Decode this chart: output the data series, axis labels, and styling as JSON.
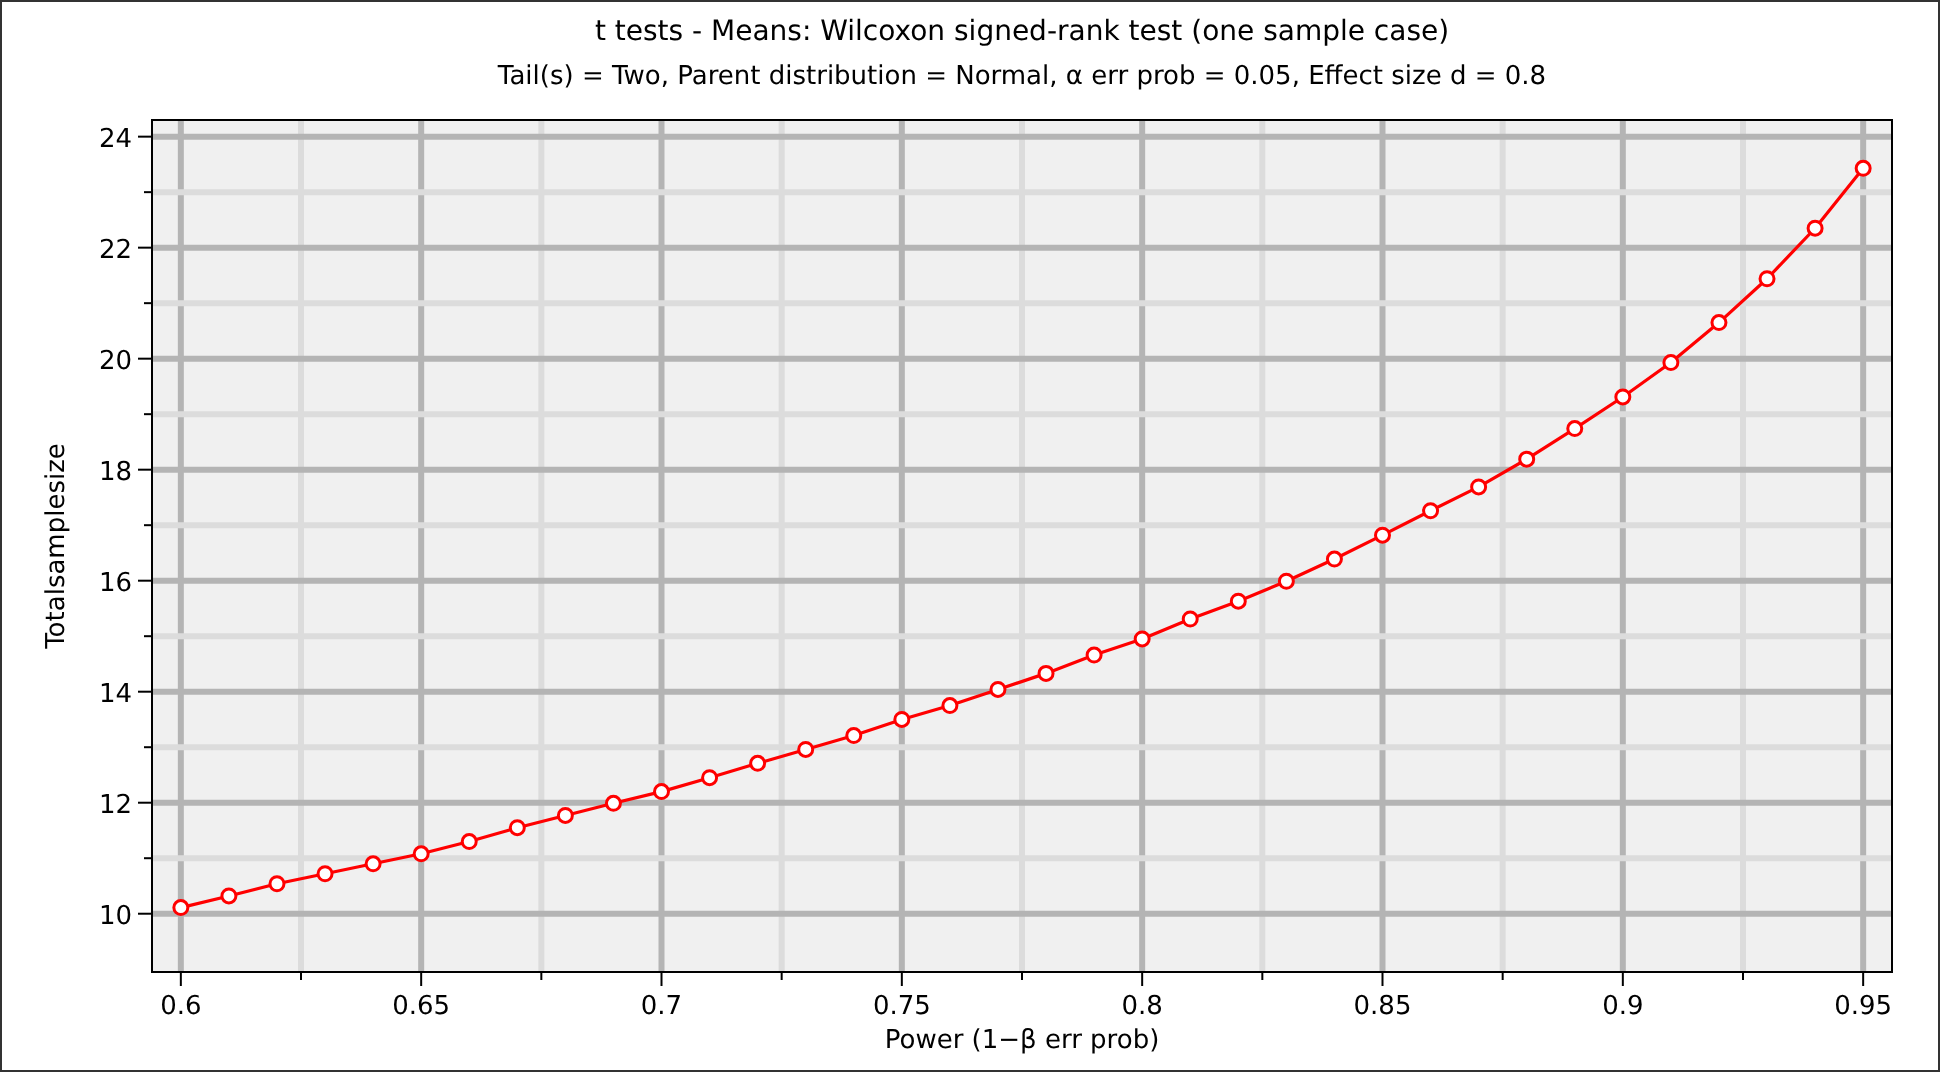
{
  "chart_data": {
    "type": "line",
    "title": "t tests - Means: Wilcoxon signed-rank test (one sample case)",
    "subtitle": "Tail(s) = Two, Parent distribution = Normal, α err prob = 0.05, Effect size d = 0.8",
    "xlabel": "Power (1−β err prob)",
    "ylabel": "Totalsamplesize",
    "x": [
      0.6,
      0.61,
      0.62,
      0.63,
      0.64,
      0.65,
      0.66,
      0.67,
      0.68,
      0.69,
      0.7,
      0.71,
      0.72,
      0.73,
      0.74,
      0.75,
      0.76,
      0.77,
      0.78,
      0.79,
      0.8,
      0.81,
      0.82,
      0.83,
      0.84,
      0.85,
      0.86,
      0.87,
      0.88,
      0.89,
      0.9,
      0.91,
      0.92,
      0.93,
      0.94,
      0.95
    ],
    "series": [
      {
        "color": "#ff0000",
        "values": [
          10.11,
          10.32,
          10.54,
          10.72,
          10.9,
          11.08,
          11.3,
          11.55,
          11.77,
          11.99,
          12.2,
          12.45,
          12.71,
          12.96,
          13.21,
          13.5,
          13.75,
          14.04,
          14.33,
          14.66,
          14.95,
          15.31,
          15.63,
          15.99,
          16.39,
          16.82,
          17.26,
          17.69,
          18.19,
          18.74,
          19.31,
          19.93,
          20.65,
          21.44,
          22.35,
          23.43
        ]
      }
    ],
    "xlim": [
      0.594,
      0.956
    ],
    "ylim": [
      8.95,
      24.3
    ],
    "xticks": [
      0.6,
      {
        "value": 0.625,
        "label": null
      },
      0.65,
      {
        "value": 0.675,
        "label": null
      },
      0.7,
      {
        "value": 0.725,
        "label": null
      },
      0.75,
      {
        "value": 0.775,
        "label": null
      },
      0.8,
      {
        "value": 0.825,
        "label": null
      },
      0.85,
      {
        "value": 0.875,
        "label": null
      },
      0.9,
      {
        "value": 0.925,
        "label": null
      },
      0.95
    ],
    "yticks": [
      10,
      {
        "value": 11,
        "label": null
      },
      12,
      {
        "value": 13,
        "label": null
      },
      14,
      {
        "value": 15,
        "label": null
      },
      16,
      {
        "value": 17,
        "label": null
      },
      18,
      {
        "value": 19,
        "label": null
      },
      20,
      {
        "value": 21,
        "label": null
      },
      22,
      {
        "value": 23,
        "label": null
      },
      24
    ],
    "grid": true,
    "marker": "circle",
    "line_style": "solid"
  }
}
